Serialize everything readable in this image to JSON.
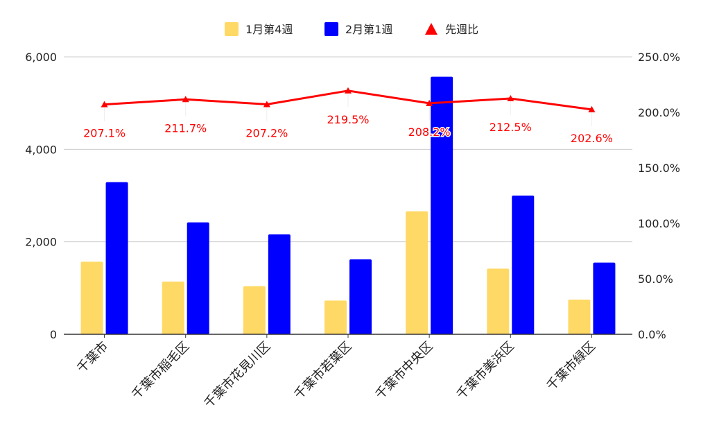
{
  "chart_data": {
    "type": "bar",
    "categories": [
      "千葉市",
      "千葉市稲毛区",
      "千葉市花見川区",
      "千葉市若葉区",
      "千葉市中央区",
      "千葉市美浜区",
      "千葉市緑区"
    ],
    "series": [
      {
        "name": "1月第4週",
        "type": "bar",
        "axis": "left",
        "color": "#FFD966",
        "values": [
          1570,
          1140,
          1040,
          730,
          2660,
          1420,
          750
        ]
      },
      {
        "name": "2月第1週",
        "type": "bar",
        "axis": "left",
        "color": "#0000FF",
        "values": [
          3290,
          2420,
          2160,
          1620,
          5570,
          3000,
          1550
        ]
      },
      {
        "name": "先週比",
        "type": "line",
        "axis": "right",
        "color": "#FF0000",
        "marker": "triangle",
        "values": [
          207.1,
          211.7,
          207.2,
          219.5,
          208.2,
          212.5,
          202.6
        ],
        "data_labels": [
          "207.1%",
          "211.7%",
          "207.2%",
          "219.5%",
          "208.2%",
          "212.5%",
          "202.6%"
        ]
      }
    ],
    "y_left": {
      "ylim": [
        0,
        6000
      ],
      "ticks": [
        0,
        2000,
        4000,
        6000
      ],
      "tick_labels": [
        "0",
        "2,000",
        "4,000",
        "6,000"
      ]
    },
    "y_right": {
      "ylim": [
        0,
        250
      ],
      "ticks": [
        0,
        50,
        100,
        150,
        200,
        250
      ],
      "tick_labels": [
        "0.0%",
        "50.0%",
        "100.0%",
        "150.0%",
        "200.0%",
        "250.0%"
      ]
    },
    "grid": true,
    "legend_position": "top-center",
    "title": "",
    "xlabel": "",
    "ylabel": ""
  }
}
